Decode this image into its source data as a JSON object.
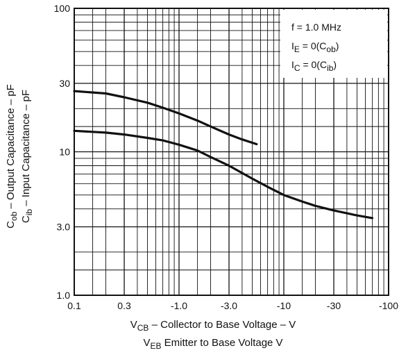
{
  "chart_data": {
    "type": "line",
    "x_scale": "log",
    "y_scale": "log",
    "xlim": [
      0.1,
      100
    ],
    "ylim": [
      1.0,
      100
    ],
    "grid": true,
    "legend_position": "top-right",
    "x_ticks": [
      {
        "value": 0.1,
        "label": "0.1"
      },
      {
        "value": 0.3,
        "label": "0.3"
      },
      {
        "value": 1,
        "label": "-1.0"
      },
      {
        "value": 3,
        "label": "-3.0"
      },
      {
        "value": 10,
        "label": "-10"
      },
      {
        "value": 30,
        "label": "-30"
      },
      {
        "value": 100,
        "label": "-100"
      }
    ],
    "y_ticks": [
      {
        "value": 1,
        "label": "1.0"
      },
      {
        "value": 3,
        "label": "3.0"
      },
      {
        "value": 10,
        "label": "10"
      },
      {
        "value": 30,
        "label": "30"
      },
      {
        "value": 100,
        "label": "100"
      }
    ],
    "ylabel": {
      "line1": {
        "main": "C",
        "sub": "ob",
        "rest": " – Output Capacitance – pF"
      },
      "line2": {
        "main": "C",
        "sub": "ib",
        "rest": " – Input Capacitance – pF"
      }
    },
    "xlabel": {
      "line1": {
        "main": "V",
        "sub": "CB",
        "rest": " – Collector to Base Voltage – V"
      },
      "line2": {
        "main": "V",
        "sub": "EB",
        "rest": "  Emitter to Base Voltage  V"
      }
    },
    "legend": [
      {
        "main": "f",
        "sub": "",
        "rest": " = 1.0  MHz"
      },
      {
        "main": "I",
        "sub": "E",
        "rest": " = 0(C",
        "sub2": "ob",
        "rest2": ")"
      },
      {
        "main": "I",
        "sub": "C",
        "rest": " = 0(C",
        "sub2": "ib",
        "rest2": ")"
      }
    ],
    "series": [
      {
        "x": [
          0.1,
          0.2,
          0.3,
          0.5,
          0.7,
          1.0,
          1.5,
          2.0,
          3.0,
          4.0,
          5.5
        ],
        "y": [
          26.5,
          25.5,
          24.0,
          22.0,
          20.3,
          18.5,
          16.5,
          15.0,
          13.2,
          12.2,
          11.3
        ]
      },
      {
        "x": [
          0.1,
          0.2,
          0.3,
          0.5,
          0.7,
          1.0,
          1.5,
          2.0,
          3.0,
          5.0,
          7.0,
          10,
          15,
          20,
          30,
          50,
          70
        ],
        "y": [
          14.0,
          13.6,
          13.2,
          12.5,
          12.0,
          11.2,
          10.2,
          9.2,
          8.0,
          6.5,
          5.7,
          5.0,
          4.5,
          4.2,
          3.9,
          3.6,
          3.45
        ]
      }
    ]
  }
}
